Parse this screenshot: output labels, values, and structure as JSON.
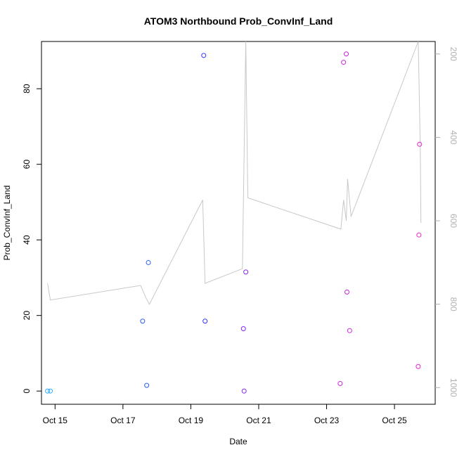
{
  "chart_data": {
    "type": "scatter",
    "title": "ATOM3 Northbound Prob_ConvInf_Land",
    "xlabel": "Date",
    "ylabel": "Prob_ConvInf_Land",
    "x_unit": "date (October)",
    "xlim": [
      14.6,
      26.2
    ],
    "ylim": [
      -3.5,
      92.5
    ],
    "x_ticks": [
      {
        "value": 15,
        "label": "Oct 15"
      },
      {
        "value": 17,
        "label": "Oct 17"
      },
      {
        "value": 19,
        "label": "Oct 19"
      },
      {
        "value": 21,
        "label": "Oct 21"
      },
      {
        "value": 23,
        "label": "Oct 23"
      },
      {
        "value": 25,
        "label": "Oct 25"
      }
    ],
    "y_ticks": [
      0,
      20,
      40,
      60,
      80
    ],
    "right_axis": {
      "reversed": true,
      "lim": [
        1040,
        170
      ],
      "ticks": [
        200,
        400,
        600,
        800,
        1000
      ],
      "color": "#b0b0b0"
    },
    "grid": false,
    "legend": "none",
    "series": [
      {
        "kind": "points",
        "points": [
          {
            "x": 14.78,
            "y": 0.0,
            "color": "#2aa8ff"
          },
          {
            "x": 14.86,
            "y": 0.0,
            "color": "#2aa8ff"
          },
          {
            "x": 17.58,
            "y": 18.5,
            "color": "#2a5cff"
          },
          {
            "x": 17.7,
            "y": 1.5,
            "color": "#2a5cff"
          },
          {
            "x": 17.75,
            "y": 34.0,
            "color": "#2a5cff"
          },
          {
            "x": 19.38,
            "y": 88.8,
            "color": "#3333ff"
          },
          {
            "x": 19.42,
            "y": 18.5,
            "color": "#3333ff"
          },
          {
            "x": 20.55,
            "y": 16.5,
            "color": "#8822ee"
          },
          {
            "x": 20.57,
            "y": 0.0,
            "color": "#8822ee"
          },
          {
            "x": 20.62,
            "y": 31.5,
            "color": "#8822ee"
          },
          {
            "x": 23.4,
            "y": 2.0,
            "color": "#cc22dd"
          },
          {
            "x": 23.5,
            "y": 87.0,
            "color": "#cc22dd"
          },
          {
            "x": 23.58,
            "y": 89.2,
            "color": "#cc22dd"
          },
          {
            "x": 23.6,
            "y": 26.2,
            "color": "#cc22dd"
          },
          {
            "x": 23.68,
            "y": 16.0,
            "color": "#cc22dd"
          },
          {
            "x": 25.7,
            "y": 6.5,
            "color": "#ee22cc"
          },
          {
            "x": 25.72,
            "y": 41.3,
            "color": "#ee22cc"
          },
          {
            "x": 25.74,
            "y": 65.3,
            "color": "#ee22cc"
          }
        ]
      },
      {
        "kind": "line",
        "axis": "right",
        "color": "#c8c8c8",
        "points": [
          [
            14.78,
            750
          ],
          [
            14.86,
            790
          ],
          [
            17.52,
            755
          ],
          [
            17.68,
            785
          ],
          [
            17.78,
            800
          ],
          [
            19.35,
            550
          ],
          [
            19.42,
            750
          ],
          [
            20.52,
            715
          ],
          [
            20.62,
            170
          ],
          [
            20.68,
            545
          ],
          [
            23.42,
            620
          ],
          [
            23.5,
            550
          ],
          [
            23.58,
            600
          ],
          [
            23.62,
            500
          ],
          [
            23.72,
            590
          ],
          [
            25.7,
            170
          ],
          [
            25.76,
            430
          ],
          [
            25.78,
            605
          ]
        ]
      }
    ]
  }
}
